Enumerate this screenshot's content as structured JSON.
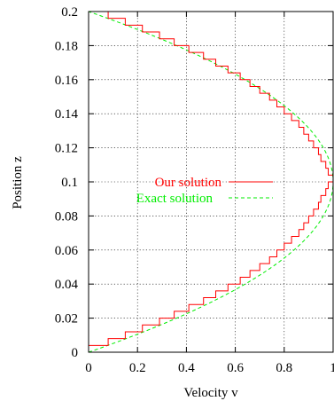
{
  "chart_data": {
    "type": "line",
    "title": "",
    "xlabel": "Velocity v",
    "ylabel": "Position z",
    "xlim": [
      0,
      1
    ],
    "ylim": [
      0,
      0.2
    ],
    "xticks": [
      0,
      0.2,
      0.4,
      0.6,
      0.8,
      1
    ],
    "xtick_labels": [
      "0",
      "0.2",
      "0.4",
      "0.6",
      "0.8",
      "1"
    ],
    "yticks": [
      0,
      0.02,
      0.04,
      0.06,
      0.08,
      0.1,
      0.12,
      0.14,
      0.16,
      0.18,
      0.2
    ],
    "ytick_labels": [
      "0",
      "0.02",
      "0.04",
      "0.06",
      "0.08",
      "0.1",
      "0.12",
      "0.14",
      "0.16",
      "0.18",
      "0.2"
    ],
    "grid": true,
    "legend_position": "center-right",
    "series": [
      {
        "name": "Our solution",
        "color": "#ff0000",
        "dash": "solid",
        "style": "step",
        "z": [
          0,
          0.004,
          0.008,
          0.012,
          0.016,
          0.02,
          0.024,
          0.028,
          0.032,
          0.036,
          0.04,
          0.044,
          0.048,
          0.052,
          0.056,
          0.06,
          0.064,
          0.068,
          0.072,
          0.076,
          0.08,
          0.084,
          0.088,
          0.092,
          0.096,
          0.1,
          0.104,
          0.108,
          0.112,
          0.116,
          0.12,
          0.124,
          0.128,
          0.132,
          0.136,
          0.14,
          0.144,
          0.148,
          0.152,
          0.156,
          0.16,
          0.164,
          0.168,
          0.172,
          0.176,
          0.18,
          0.184,
          0.188,
          0.192,
          0.196,
          0.2
        ],
        "v": [
          0,
          0.08,
          0.15,
          0.22,
          0.29,
          0.35,
          0.41,
          0.47,
          0.52,
          0.57,
          0.62,
          0.66,
          0.7,
          0.74,
          0.77,
          0.8,
          0.83,
          0.86,
          0.88,
          0.9,
          0.92,
          0.94,
          0.95,
          0.97,
          0.98,
          1.0,
          0.98,
          0.97,
          0.95,
          0.94,
          0.92,
          0.9,
          0.88,
          0.86,
          0.83,
          0.8,
          0.77,
          0.74,
          0.7,
          0.66,
          0.62,
          0.57,
          0.52,
          0.47,
          0.41,
          0.35,
          0.29,
          0.22,
          0.15,
          0.08,
          0
        ]
      },
      {
        "name": "Exact solution",
        "color": "#00ee00",
        "dash": "dashed",
        "style": "curve",
        "formula": "v = 1 - ((z - 0.1)/0.1)^2"
      }
    ]
  }
}
